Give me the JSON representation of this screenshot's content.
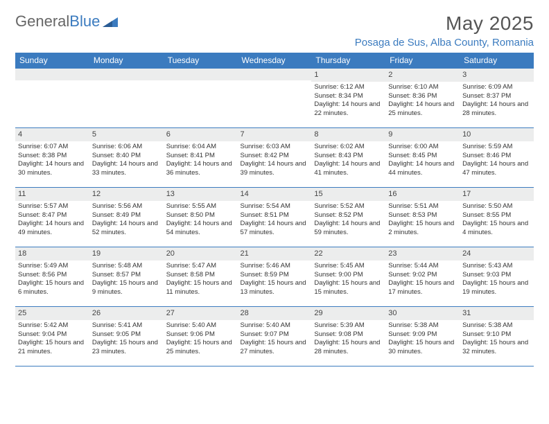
{
  "brand": {
    "word1": "General",
    "word2": "Blue"
  },
  "header": {
    "month_title": "May 2025",
    "location": "Posaga de Sus, Alba County, Romania"
  },
  "weekdays": [
    "Sunday",
    "Monday",
    "Tuesday",
    "Wednesday",
    "Thursday",
    "Friday",
    "Saturday"
  ],
  "colors": {
    "header_bg": "#3b7bbf",
    "header_text": "#ffffff",
    "daynum_bg": "#eceded",
    "border": "#3b7bbf",
    "title_color": "#555555",
    "location_color": "#3b7bbf"
  },
  "weeks": [
    [
      {
        "n": "",
        "sr": "",
        "ss": "",
        "dl": ""
      },
      {
        "n": "",
        "sr": "",
        "ss": "",
        "dl": ""
      },
      {
        "n": "",
        "sr": "",
        "ss": "",
        "dl": ""
      },
      {
        "n": "",
        "sr": "",
        "ss": "",
        "dl": ""
      },
      {
        "n": "1",
        "sr": "Sunrise: 6:12 AM",
        "ss": "Sunset: 8:34 PM",
        "dl": "Daylight: 14 hours and 22 minutes."
      },
      {
        "n": "2",
        "sr": "Sunrise: 6:10 AM",
        "ss": "Sunset: 8:36 PM",
        "dl": "Daylight: 14 hours and 25 minutes."
      },
      {
        "n": "3",
        "sr": "Sunrise: 6:09 AM",
        "ss": "Sunset: 8:37 PM",
        "dl": "Daylight: 14 hours and 28 minutes."
      }
    ],
    [
      {
        "n": "4",
        "sr": "Sunrise: 6:07 AM",
        "ss": "Sunset: 8:38 PM",
        "dl": "Daylight: 14 hours and 30 minutes."
      },
      {
        "n": "5",
        "sr": "Sunrise: 6:06 AM",
        "ss": "Sunset: 8:40 PM",
        "dl": "Daylight: 14 hours and 33 minutes."
      },
      {
        "n": "6",
        "sr": "Sunrise: 6:04 AM",
        "ss": "Sunset: 8:41 PM",
        "dl": "Daylight: 14 hours and 36 minutes."
      },
      {
        "n": "7",
        "sr": "Sunrise: 6:03 AM",
        "ss": "Sunset: 8:42 PM",
        "dl": "Daylight: 14 hours and 39 minutes."
      },
      {
        "n": "8",
        "sr": "Sunrise: 6:02 AM",
        "ss": "Sunset: 8:43 PM",
        "dl": "Daylight: 14 hours and 41 minutes."
      },
      {
        "n": "9",
        "sr": "Sunrise: 6:00 AM",
        "ss": "Sunset: 8:45 PM",
        "dl": "Daylight: 14 hours and 44 minutes."
      },
      {
        "n": "10",
        "sr": "Sunrise: 5:59 AM",
        "ss": "Sunset: 8:46 PM",
        "dl": "Daylight: 14 hours and 47 minutes."
      }
    ],
    [
      {
        "n": "11",
        "sr": "Sunrise: 5:57 AM",
        "ss": "Sunset: 8:47 PM",
        "dl": "Daylight: 14 hours and 49 minutes."
      },
      {
        "n": "12",
        "sr": "Sunrise: 5:56 AM",
        "ss": "Sunset: 8:49 PM",
        "dl": "Daylight: 14 hours and 52 minutes."
      },
      {
        "n": "13",
        "sr": "Sunrise: 5:55 AM",
        "ss": "Sunset: 8:50 PM",
        "dl": "Daylight: 14 hours and 54 minutes."
      },
      {
        "n": "14",
        "sr": "Sunrise: 5:54 AM",
        "ss": "Sunset: 8:51 PM",
        "dl": "Daylight: 14 hours and 57 minutes."
      },
      {
        "n": "15",
        "sr": "Sunrise: 5:52 AM",
        "ss": "Sunset: 8:52 PM",
        "dl": "Daylight: 14 hours and 59 minutes."
      },
      {
        "n": "16",
        "sr": "Sunrise: 5:51 AM",
        "ss": "Sunset: 8:53 PM",
        "dl": "Daylight: 15 hours and 2 minutes."
      },
      {
        "n": "17",
        "sr": "Sunrise: 5:50 AM",
        "ss": "Sunset: 8:55 PM",
        "dl": "Daylight: 15 hours and 4 minutes."
      }
    ],
    [
      {
        "n": "18",
        "sr": "Sunrise: 5:49 AM",
        "ss": "Sunset: 8:56 PM",
        "dl": "Daylight: 15 hours and 6 minutes."
      },
      {
        "n": "19",
        "sr": "Sunrise: 5:48 AM",
        "ss": "Sunset: 8:57 PM",
        "dl": "Daylight: 15 hours and 9 minutes."
      },
      {
        "n": "20",
        "sr": "Sunrise: 5:47 AM",
        "ss": "Sunset: 8:58 PM",
        "dl": "Daylight: 15 hours and 11 minutes."
      },
      {
        "n": "21",
        "sr": "Sunrise: 5:46 AM",
        "ss": "Sunset: 8:59 PM",
        "dl": "Daylight: 15 hours and 13 minutes."
      },
      {
        "n": "22",
        "sr": "Sunrise: 5:45 AM",
        "ss": "Sunset: 9:00 PM",
        "dl": "Daylight: 15 hours and 15 minutes."
      },
      {
        "n": "23",
        "sr": "Sunrise: 5:44 AM",
        "ss": "Sunset: 9:02 PM",
        "dl": "Daylight: 15 hours and 17 minutes."
      },
      {
        "n": "24",
        "sr": "Sunrise: 5:43 AM",
        "ss": "Sunset: 9:03 PM",
        "dl": "Daylight: 15 hours and 19 minutes."
      }
    ],
    [
      {
        "n": "25",
        "sr": "Sunrise: 5:42 AM",
        "ss": "Sunset: 9:04 PM",
        "dl": "Daylight: 15 hours and 21 minutes."
      },
      {
        "n": "26",
        "sr": "Sunrise: 5:41 AM",
        "ss": "Sunset: 9:05 PM",
        "dl": "Daylight: 15 hours and 23 minutes."
      },
      {
        "n": "27",
        "sr": "Sunrise: 5:40 AM",
        "ss": "Sunset: 9:06 PM",
        "dl": "Daylight: 15 hours and 25 minutes."
      },
      {
        "n": "28",
        "sr": "Sunrise: 5:40 AM",
        "ss": "Sunset: 9:07 PM",
        "dl": "Daylight: 15 hours and 27 minutes."
      },
      {
        "n": "29",
        "sr": "Sunrise: 5:39 AM",
        "ss": "Sunset: 9:08 PM",
        "dl": "Daylight: 15 hours and 28 minutes."
      },
      {
        "n": "30",
        "sr": "Sunrise: 5:38 AM",
        "ss": "Sunset: 9:09 PM",
        "dl": "Daylight: 15 hours and 30 minutes."
      },
      {
        "n": "31",
        "sr": "Sunrise: 5:38 AM",
        "ss": "Sunset: 9:10 PM",
        "dl": "Daylight: 15 hours and 32 minutes."
      }
    ]
  ]
}
